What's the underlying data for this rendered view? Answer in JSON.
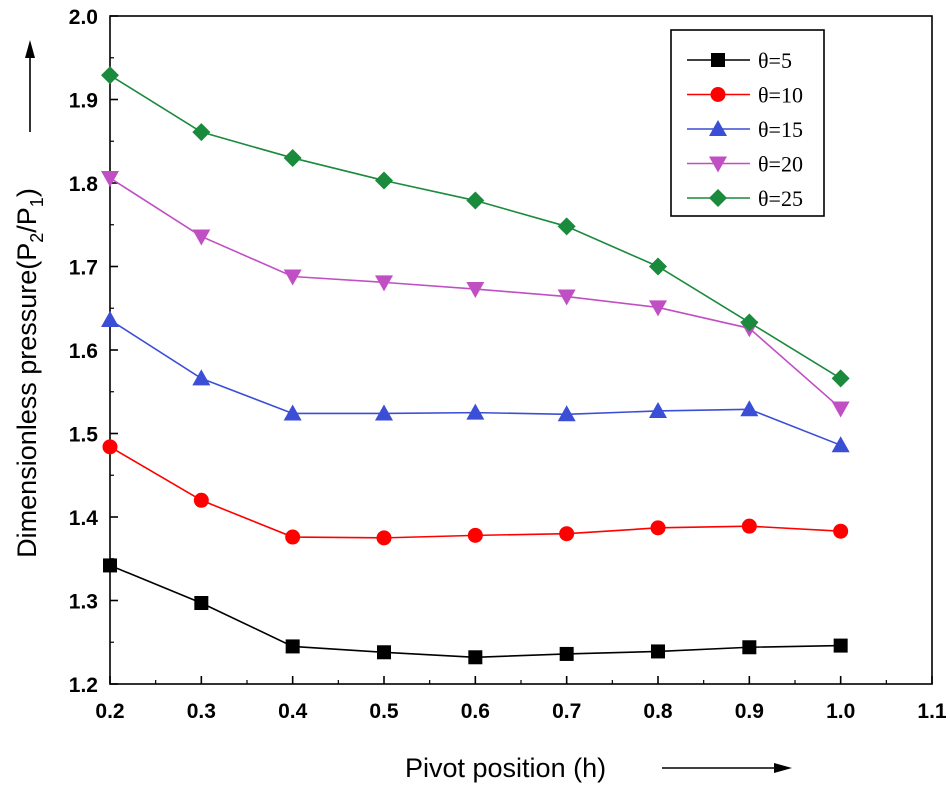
{
  "chart_data": {
    "type": "line",
    "title": "",
    "xlabel": "Pivot position (h)",
    "ylabel": {
      "main": "Dimensionless pressure(P",
      "sub1": "2",
      "mid": "/P",
      "sub2": "1",
      "end": ")"
    },
    "xlim": [
      0.2,
      1.1
    ],
    "ylim": [
      1.2,
      2.0
    ],
    "x_ticks": [
      "0.2",
      "0.3",
      "0.4",
      "0.5",
      "0.6",
      "0.7",
      "0.8",
      "0.9",
      "1.0",
      "1.1"
    ],
    "y_ticks": [
      "1.2",
      "1.3",
      "1.4",
      "1.5",
      "1.6",
      "1.7",
      "1.8",
      "1.9",
      "2.0"
    ],
    "x": [
      0.2,
      0.3,
      0.4,
      0.5,
      0.6,
      0.7,
      0.8,
      0.9,
      1.0
    ],
    "legend_position": "top-right",
    "series": [
      {
        "name": "θ=5",
        "color": "#000000",
        "marker": "square",
        "values": [
          1.342,
          1.297,
          1.245,
          1.238,
          1.232,
          1.236,
          1.239,
          1.244,
          1.246
        ]
      },
      {
        "name": "θ=10",
        "color": "#ff0000",
        "marker": "circle",
        "values": [
          1.484,
          1.42,
          1.376,
          1.375,
          1.378,
          1.38,
          1.387,
          1.389,
          1.383
        ]
      },
      {
        "name": "θ=15",
        "color": "#3b4ed6",
        "marker": "triangle-up",
        "values": [
          1.636,
          1.566,
          1.524,
          1.524,
          1.525,
          1.523,
          1.527,
          1.529,
          1.486
        ]
      },
      {
        "name": "θ=20",
        "color": "#c14fc4",
        "marker": "triangle-down",
        "values": [
          1.806,
          1.736,
          1.688,
          1.681,
          1.673,
          1.664,
          1.651,
          1.626,
          1.53
        ]
      },
      {
        "name": "θ=25",
        "color": "#1a8a3c",
        "marker": "diamond",
        "values": [
          1.929,
          1.861,
          1.83,
          1.803,
          1.779,
          1.748,
          1.7,
          1.633,
          1.566
        ]
      }
    ]
  }
}
